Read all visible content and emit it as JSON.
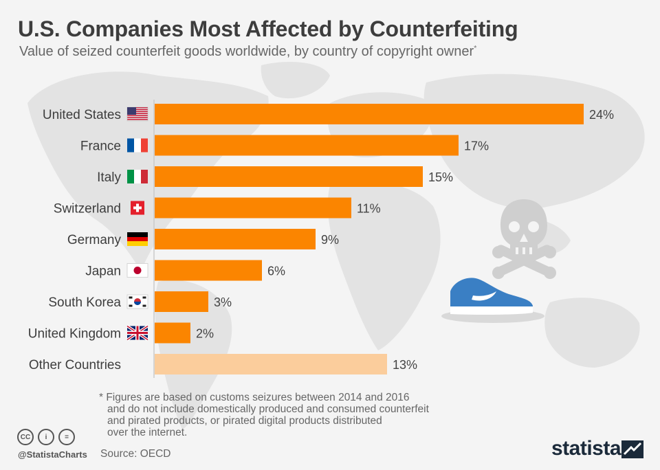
{
  "title": "U.S. Companies Most Affected by Counterfeiting",
  "subtitle": "Value of seized counterfeit goods worldwide, by country of copyright owner",
  "subtitle_mark": "*",
  "colors": {
    "bar": "#fb8500",
    "bar_other": "#fbcd9c",
    "axis": "#cccccc",
    "map": "#e2e2e2",
    "label": "#3d3d3d",
    "value": "#444444"
  },
  "chart_data": {
    "type": "bar",
    "orientation": "horizontal",
    "categories": [
      "United States",
      "France",
      "Italy",
      "Switzerland",
      "Germany",
      "Japan",
      "South Korea",
      "United Kingdom",
      "Other Countries"
    ],
    "values": [
      24,
      17,
      15,
      11,
      9,
      6,
      3,
      2,
      13
    ],
    "value_labels": [
      "24%",
      "17%",
      "15%",
      "11%",
      "9%",
      "6%",
      "3%",
      "2%",
      "13%"
    ],
    "flags": [
      "us-flag-icon",
      "france-flag-icon",
      "italy-flag-icon",
      "switzerland-flag-icon",
      "germany-flag-icon",
      "japan-flag-icon",
      "south-korea-flag-icon",
      "uk-flag-icon",
      ""
    ],
    "highlight_last": true
  },
  "footnote": {
    "lines": [
      "* Figures are based on customs seizures between 2014 and 2016",
      "and do not include domestically produced and consumed counterfeit",
      "and pirated products, or pirated digital products distributed",
      "over the internet."
    ]
  },
  "footer": {
    "cc_icons": [
      "CC",
      "i",
      "="
    ],
    "handle": "@StatistaCharts",
    "source": "Source: OECD",
    "brand": "statista"
  },
  "illustration": {
    "icons": [
      "skull-crossbones-icon",
      "sneaker-icon"
    ]
  }
}
